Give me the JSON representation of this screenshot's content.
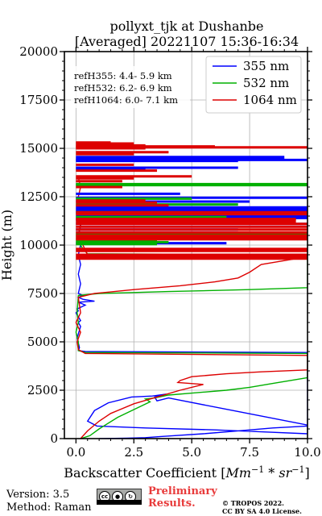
{
  "chart_data": {
    "type": "line",
    "title": "pollyxt_tjk at Dushanbe",
    "subtitle": "[Averaged] 20221107 15:36-16:34",
    "xlabel": "Backscatter Coefficient [Mm⁻¹ * sr⁻¹]",
    "ylabel": "Height (m)",
    "xlim": [
      -0.5,
      10.0
    ],
    "ylim": [
      0,
      20000
    ],
    "xticks": [
      0.0,
      2.5,
      5.0,
      7.5,
      10.0
    ],
    "xtick_labels": [
      "0.0",
      "2.5",
      "5.0",
      "7.5",
      "10.0"
    ],
    "yticks": [
      0,
      2500,
      5000,
      7500,
      10000,
      12500,
      15000,
      17500,
      20000
    ],
    "ytick_labels": [
      "0",
      "2500",
      "5000",
      "7500",
      "10000",
      "12500",
      "15000",
      "17500",
      "20000"
    ],
    "grid": true,
    "legend_position": "top-right",
    "annotations": [
      "refH355:  4.4- 5.9 km",
      "refH532:  6.2- 6.9 km",
      "refH1064:  6.0- 7.1 km"
    ],
    "series": [
      {
        "name": "355 nm",
        "color": "#0000ff",
        "x": [
          1.0,
          2.2,
          3.0,
          3.6,
          4.2,
          5.5,
          7.0,
          8.5,
          10.0,
          10.0,
          4.0,
          3.5,
          3.4,
          3.9,
          3.3,
          2.4,
          1.4,
          0.8,
          0.5,
          0.9,
          3.0,
          6.0,
          8.0,
          10.0,
          10.0,
          0.4,
          0.1,
          0.15,
          0.05,
          0.2,
          0.1,
          0.2,
          0.0,
          0.1,
          0.05,
          0.4,
          0.1,
          0.8,
          0.3,
          0.1,
          0.3,
          0.1,
          0.2,
          0.1,
          0.2,
          0.1,
          0.2,
          0.1,
          0.2,
          0.1
        ],
        "y": [
          0,
          20,
          50,
          100,
          150,
          250,
          400,
          550,
          650,
          700,
          2100,
          1950,
          2150,
          2300,
          2200,
          2150,
          1850,
          1450,
          900,
          650,
          550,
          450,
          350,
          250,
          4450,
          4500,
          4550,
          4700,
          5200,
          5800,
          6000,
          6100,
          6500,
          6600,
          6700,
          6900,
          7050,
          7100,
          7200,
          7300,
          7400,
          7500,
          8000,
          8500,
          9000,
          9500,
          10000,
          10500,
          11000,
          11500
        ]
      },
      {
        "name": "532 nm",
        "color": "#00b000",
        "x": [
          0.2,
          0.6,
          1.0,
          1.8,
          2.5,
          3.2,
          3.0,
          3.4,
          4.0,
          5.0,
          6.5,
          7.5,
          8.5,
          9.5,
          10.0,
          10.0,
          0.4,
          0.1,
          0.1,
          0.0,
          0.1,
          0.05,
          0.1,
          1.0,
          4.0,
          7.5,
          10.0,
          10.0,
          0.5,
          0.3,
          0.2,
          0.1,
          0.2,
          0.1,
          0.2,
          0.1
        ],
        "y": [
          0,
          150,
          500,
          1100,
          1500,
          1900,
          2050,
          2100,
          2250,
          2350,
          2500,
          2650,
          2850,
          3050,
          3150,
          4400,
          4450,
          4550,
          5000,
          5500,
          6000,
          6500,
          7400,
          7500,
          7600,
          7700,
          7800,
          9500,
          9550,
          9800,
          10000,
          10500,
          11000,
          11500,
          12000,
          12500
        ]
      },
      {
        "name": "1064 nm",
        "color": "#dd0000",
        "x": [
          0.2,
          0.5,
          1.0,
          1.5,
          2.5,
          3.5,
          4.5,
          5.5,
          4.4,
          4.5,
          5.0,
          6.5,
          8.0,
          10.0,
          10.0,
          0.4,
          0.1,
          0.05,
          0.2,
          0.0,
          0.2,
          0.1,
          0.8,
          2.5,
          4.5,
          6.0,
          7.0,
          7.5,
          8.0,
          10.0,
          0.5,
          0.3,
          0.1,
          0.2,
          0.1,
          0.2,
          0.1,
          0.2,
          0.1
        ],
        "y": [
          0,
          400,
          900,
          1300,
          1800,
          2150,
          2500,
          2800,
          2900,
          3000,
          3200,
          3350,
          3450,
          3550,
          4300,
          4400,
          4600,
          5000,
          5500,
          6000,
          6500,
          7300,
          7500,
          7700,
          7900,
          8100,
          8300,
          8600,
          9000,
          9400,
          9500,
          10000,
          10500,
          11000,
          11500,
          12000,
          12500,
          13000,
          13500
        ]
      }
    ],
    "extra_segments": [
      {
        "color": "#0000ff",
        "y": [
          10100,
          10800,
          11100,
          11300,
          11400,
          11500,
          11650,
          11750,
          11850,
          11950,
          12250,
          12450,
          12650,
          13950,
          14000,
          14350,
          14400,
          14450,
          14550
        ],
        "x": [
          6.5,
          7.0,
          10.0,
          9.0,
          10.0,
          10.0,
          10.0,
          10.0,
          10.0,
          10.0,
          7.5,
          10.0,
          4.5,
          3.0,
          7.0,
          7.0,
          10.0,
          9.0,
          9.0
        ]
      },
      {
        "color": "#00b000",
        "y": [
          10050,
          10150,
          10250,
          10350,
          10500,
          10600,
          11450,
          11700,
          12100,
          12400,
          13100,
          13150
        ],
        "x": [
          3.5,
          4.0,
          3.5,
          4.0,
          10.0,
          10.0,
          6.5,
          4.5,
          7.0,
          5.0,
          10.0,
          10.0
        ]
      },
      {
        "color": "#dd0000",
        "y": [
          9300,
          9400,
          9500,
          9700,
          9800,
          10300,
          10400,
          10500,
          10650,
          10800,
          10950,
          11100,
          11200,
          11300,
          11350,
          11600,
          11700,
          12050,
          12200,
          12300,
          13000,
          13300,
          13450,
          13550,
          13850,
          14150,
          14700,
          14800,
          15000,
          15050,
          15100,
          15150,
          15250,
          15300
        ],
        "x": [
          10.0,
          10.0,
          10.0,
          10.0,
          10.0,
          10.0,
          10.0,
          10.0,
          10.0,
          10.0,
          10.0,
          10.0,
          9.5,
          9.5,
          9.5,
          10.0,
          10.0,
          4.0,
          3.5,
          3.0,
          2.0,
          2.0,
          2.5,
          5.0,
          3.5,
          2.5,
          2.5,
          4.0,
          3.0,
          10.0,
          6.0,
          3.0,
          2.5,
          1.5
        ]
      }
    ]
  },
  "footer": {
    "version": "Version: 3.5",
    "method": "Method: Raman",
    "preliminary_line1": "Preliminary",
    "preliminary_line2": "Results.",
    "copyright_line1": "© TROPOS 2022.",
    "copyright_line2": "CC BY SA 4.0 License.",
    "license_icon": "cc-by-sa-icon",
    "cc_text": "cc",
    "by_text": "BY",
    "sa_text": "SA",
    "prelim_color": "#e83a3a"
  }
}
